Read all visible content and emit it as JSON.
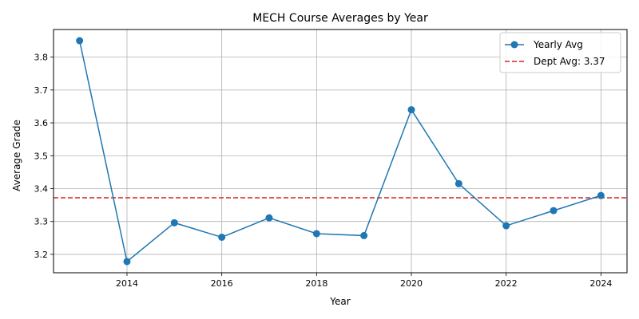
{
  "chart_data": {
    "type": "line",
    "title": "MECH Course Averages by Year",
    "xlabel": "Year",
    "ylabel": "Average Grade",
    "x": [
      2013,
      2014,
      2015,
      2016,
      2017,
      2018,
      2019,
      2020,
      2021,
      2022,
      2023,
      2024
    ],
    "series": [
      {
        "name": "Yearly Avg",
        "values": [
          3.85,
          3.178,
          3.296,
          3.252,
          3.311,
          3.263,
          3.257,
          3.64,
          3.415,
          3.287,
          3.333,
          3.379
        ],
        "color": "#1f77b4"
      }
    ],
    "reference_line": {
      "name": "Dept Avg: 3.37",
      "value": 3.372,
      "color": "#d62728",
      "style": "dashed"
    },
    "xlim": [
      2012.45,
      2024.55
    ],
    "ylim": [
      3.144,
      3.884
    ],
    "x_ticks": [
      2014,
      2016,
      2018,
      2020,
      2022,
      2024
    ],
    "y_ticks": [
      3.2,
      3.3,
      3.4,
      3.5,
      3.6,
      3.7,
      3.8
    ],
    "x_tick_labels": [
      "2014",
      "2016",
      "2018",
      "2020",
      "2022",
      "2024"
    ],
    "y_tick_labels": [
      "3.2",
      "3.3",
      "3.4",
      "3.5",
      "3.6",
      "3.7",
      "3.8"
    ],
    "grid": true,
    "legend_position": "top-right"
  }
}
